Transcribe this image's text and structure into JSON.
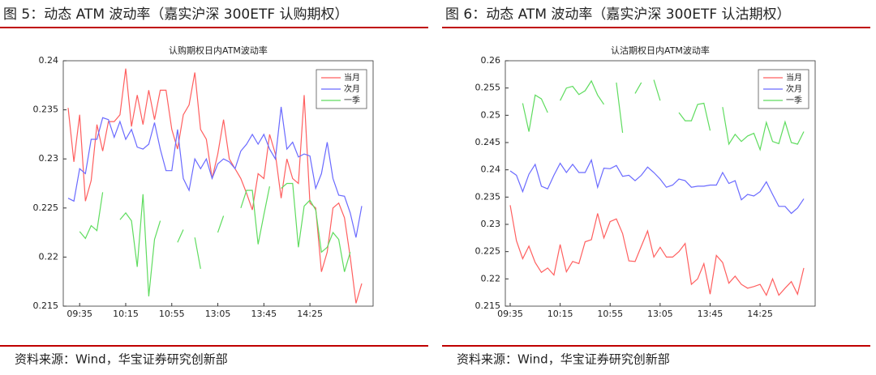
{
  "chart_data": [
    {
      "type": "line",
      "caption": "图 5：动态 ATM 波动率（嘉实沪深 300ETF 认购期权）",
      "title": "认购期权日内ATM波动率",
      "source": "资料来源：Wind，华宝证券研究创新部",
      "categories": [
        null,
        null,
        "09:35",
        null,
        null,
        null,
        null,
        null,
        null,
        null,
        "10:15",
        null,
        null,
        null,
        null,
        null,
        null,
        null,
        "10:55",
        null,
        null,
        null,
        null,
        null,
        null,
        null,
        "13:05",
        null,
        null,
        null,
        null,
        null,
        null,
        null,
        "13:45",
        null,
        null,
        null,
        null,
        null,
        null,
        null,
        "14:25",
        null,
        null,
        null,
        null,
        null,
        null,
        null,
        null,
        null
      ],
      "ylim": [
        0.215,
        0.24
      ],
      "yticks": [
        0.215,
        0.22,
        0.225,
        0.23,
        0.235,
        0.24
      ],
      "legend": "upper right",
      "series": [
        {
          "name": "当月",
          "color": "#ff5f5f",
          "values": [
            0.2352,
            0.2297,
            0.2345,
            0.2257,
            0.2278,
            0.2335,
            0.2308,
            0.2338,
            0.2338,
            0.2345,
            0.2392,
            0.2333,
            0.2365,
            0.2335,
            0.237,
            0.234,
            0.237,
            0.237,
            0.233,
            0.231,
            0.2345,
            0.2355,
            0.2388,
            0.233,
            0.232,
            0.228,
            0.2305,
            0.234,
            0.23,
            0.229,
            0.228,
            0.2265,
            0.2248,
            0.2285,
            0.228,
            0.2325,
            0.2305,
            0.226,
            0.23,
            0.228,
            0.2275,
            0.2365,
            0.2255,
            0.225,
            0.2185,
            0.2205,
            0.225,
            0.2255,
            0.224,
            0.22,
            0.2153,
            0.2173
          ]
        },
        {
          "name": "次月",
          "color": "#6a6aff",
          "values": [
            0.226,
            0.2257,
            0.229,
            0.2285,
            0.232,
            0.232,
            0.2342,
            0.234,
            0.2322,
            0.2338,
            0.232,
            0.233,
            0.2312,
            0.231,
            0.2315,
            0.2337,
            0.231,
            0.2288,
            0.2288,
            0.233,
            0.228,
            0.2268,
            0.23,
            0.229,
            0.23,
            0.228,
            0.2295,
            0.23,
            0.2297,
            0.229,
            0.2308,
            0.2315,
            0.2325,
            0.2315,
            0.2325,
            0.231,
            0.23,
            0.2353,
            0.231,
            0.2317,
            0.2302,
            0.2305,
            0.2303,
            0.227,
            0.2285,
            0.2317,
            0.228,
            0.2263,
            0.2262,
            0.2245,
            0.222,
            0.2252
          ]
        },
        {
          "name": "一季",
          "color": "#5fdc5f",
          "values": [
            null,
            null,
            0.2226,
            0.2219,
            0.2232,
            0.2227,
            0.2266,
            null,
            null,
            0.2238,
            0.2245,
            0.2237,
            0.219,
            0.2264,
            0.216,
            0.2218,
            0.2237,
            null,
            null,
            0.2215,
            0.2228,
            null,
            0.222,
            0.2188,
            null,
            null,
            0.2225,
            0.2242,
            null,
            null,
            0.225,
            0.2268,
            0.2268,
            0.2213,
            0.2243,
            0.2272,
            null,
            0.227,
            0.2275,
            0.2275,
            0.221,
            0.2252,
            0.2258,
            0.2248,
            0.2205,
            0.221,
            0.2225,
            0.2218,
            0.2185,
            0.2205,
            null,
            null
          ]
        }
      ]
    },
    {
      "type": "line",
      "caption": "图 6：动态 ATM 波动率（嘉实沪深 300ETF 认沽期权）",
      "title": "认沽期权日内ATM波动率",
      "source": "资料来源：Wind，华宝证券研究创新部",
      "categories": [
        "09:35",
        null,
        null,
        null,
        null,
        null,
        null,
        null,
        "10:15",
        null,
        null,
        null,
        null,
        null,
        null,
        null,
        "10:55",
        null,
        null,
        null,
        null,
        null,
        null,
        null,
        "13:05",
        null,
        null,
        null,
        null,
        null,
        null,
        null,
        "13:45",
        null,
        null,
        null,
        null,
        null,
        null,
        null,
        "14:25",
        null,
        null,
        null,
        null,
        null,
        null,
        null
      ],
      "ylim": [
        0.215,
        0.26
      ],
      "yticks": [
        0.215,
        0.22,
        0.225,
        0.23,
        0.235,
        0.24,
        0.245,
        0.25,
        0.255,
        0.26
      ],
      "legend": "upper right",
      "series": [
        {
          "name": "当月",
          "color": "#ff5f5f",
          "values": [
            0.2335,
            0.227,
            0.2237,
            0.226,
            0.223,
            0.2212,
            0.222,
            0.2207,
            0.2263,
            0.2213,
            0.2232,
            0.2228,
            0.2268,
            0.2272,
            0.232,
            0.2275,
            0.2305,
            0.231,
            0.2283,
            0.2233,
            0.2232,
            0.226,
            0.2288,
            0.224,
            0.2258,
            0.224,
            0.224,
            0.225,
            0.2265,
            0.219,
            0.22,
            0.2228,
            0.2172,
            0.2243,
            0.223,
            0.2192,
            0.2205,
            0.219,
            0.2183,
            0.2186,
            0.219,
            0.217,
            0.22,
            0.217,
            0.2183,
            0.2195,
            0.2172,
            0.222
          ]
        },
        {
          "name": "次月",
          "color": "#6a6aff",
          "values": [
            0.2398,
            0.239,
            0.236,
            0.2392,
            0.241,
            0.237,
            0.2365,
            0.239,
            0.2412,
            0.2395,
            0.241,
            0.2395,
            0.2395,
            0.2418,
            0.2368,
            0.2403,
            0.2402,
            0.2408,
            0.2388,
            0.239,
            0.238,
            0.239,
            0.2405,
            0.2395,
            0.2383,
            0.2368,
            0.2372,
            0.2383,
            0.238,
            0.2368,
            0.237,
            0.237,
            0.2372,
            0.2372,
            0.2395,
            0.2375,
            0.238,
            0.2345,
            0.2355,
            0.2352,
            0.236,
            0.2378,
            0.2355,
            0.2333,
            0.2333,
            0.232,
            0.233,
            0.2347
          ]
        },
        {
          "name": "一季",
          "color": "#5fdc5f",
          "values": [
            null,
            null,
            0.2522,
            0.247,
            0.2537,
            0.253,
            0.2505,
            null,
            0.2527,
            0.255,
            0.2553,
            0.2538,
            0.2545,
            0.2563,
            0.2537,
            0.252,
            null,
            0.256,
            0.2468,
            null,
            0.254,
            0.256,
            null,
            0.2565,
            0.2527,
            null,
            null,
            0.2505,
            0.249,
            0.249,
            0.252,
            0.2522,
            0.2472,
            null,
            0.2515,
            0.2447,
            0.2465,
            0.2452,
            0.2462,
            0.2467,
            0.2437,
            0.2487,
            0.2452,
            0.2448,
            0.2488,
            0.245,
            0.2447,
            0.247
          ]
        }
      ]
    }
  ]
}
